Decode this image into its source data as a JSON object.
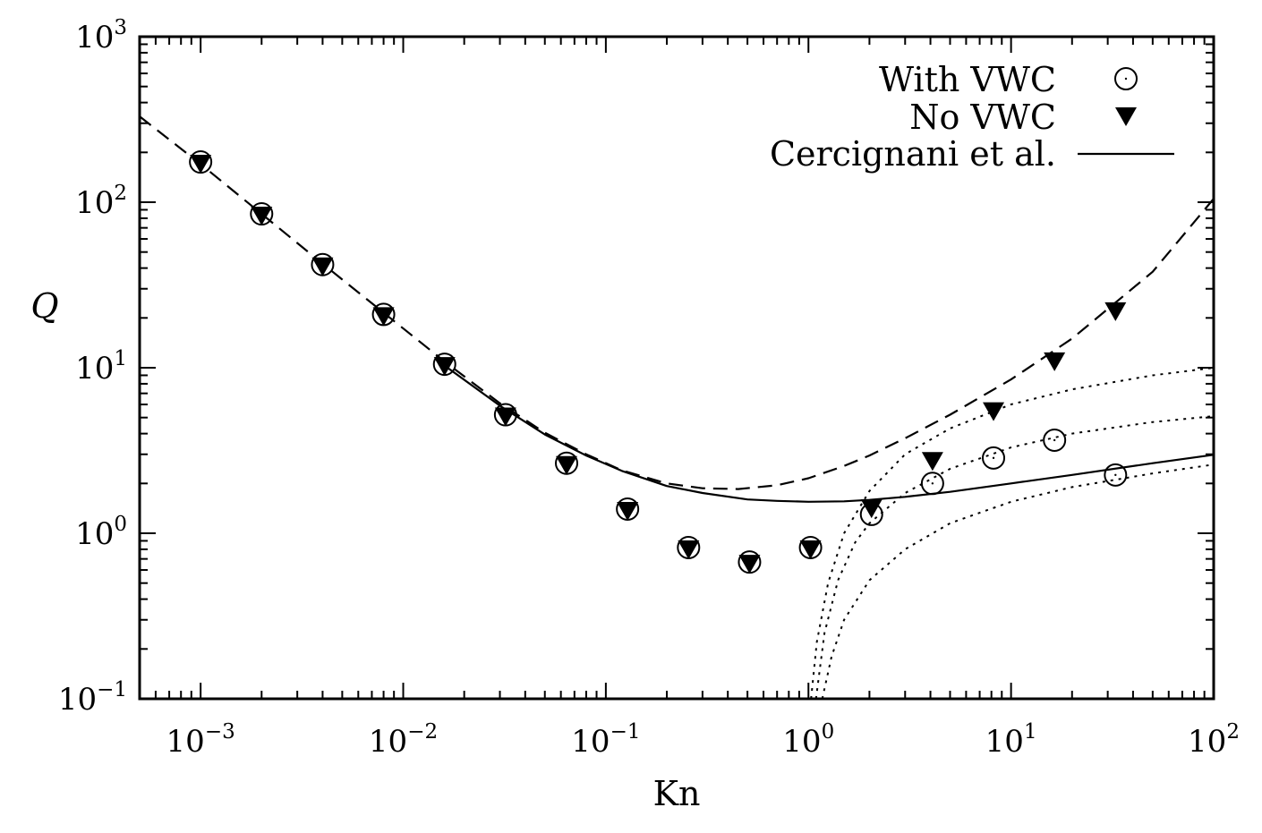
{
  "chart_data": {
    "type": "scatter",
    "xlabel": "Kn",
    "ylabel": "Q",
    "x_scale": "log",
    "y_scale": "log",
    "xlim": [
      0.0005,
      100
    ],
    "ylim": [
      0.1,
      1000
    ],
    "grid": false,
    "legend_position": "top-right",
    "x_ticks": [
      {
        "value": 0.001,
        "base": "10",
        "exp": "−3"
      },
      {
        "value": 0.01,
        "base": "10",
        "exp": "−2"
      },
      {
        "value": 0.1,
        "base": "10",
        "exp": "−1"
      },
      {
        "value": 1,
        "base": "10",
        "exp": "0"
      },
      {
        "value": 10,
        "base": "10",
        "exp": "1"
      },
      {
        "value": 100,
        "base": "10",
        "exp": "2"
      }
    ],
    "y_ticks": [
      {
        "value": 0.1,
        "base": "10",
        "exp": "−1"
      },
      {
        "value": 1,
        "base": "10",
        "exp": "0"
      },
      {
        "value": 10,
        "base": "10",
        "exp": "1"
      },
      {
        "value": 100,
        "base": "10",
        "exp": "2"
      },
      {
        "value": 1000,
        "base": "10",
        "exp": "3"
      }
    ],
    "series": [
      {
        "name": "With VWC",
        "marker": "open-circle",
        "x": [
          0.001,
          0.002,
          0.004,
          0.008,
          0.016,
          0.032,
          0.064,
          0.128,
          0.256,
          0.512,
          1.024,
          2.048,
          4.096,
          8.192,
          16.384,
          32.768
        ],
        "y": [
          175,
          85,
          42,
          21,
          10.5,
          5.2,
          2.65,
          1.4,
          0.82,
          0.67,
          0.82,
          1.3,
          2.0,
          2.85,
          3.65,
          2.25
        ]
      },
      {
        "name": "No VWC",
        "marker": "filled-triangle-down",
        "x": [
          0.001,
          0.002,
          0.004,
          0.008,
          0.016,
          0.032,
          0.064,
          0.128,
          0.256,
          0.512,
          1.024,
          2.048,
          4.096,
          8.192,
          16.384,
          32.768
        ],
        "y": [
          175,
          85,
          42,
          21,
          10.5,
          5.2,
          2.65,
          1.4,
          0.82,
          0.67,
          0.82,
          1.45,
          2.8,
          5.6,
          11.2,
          22.5
        ]
      },
      {
        "name": "Cercignani et al.",
        "style": "solid",
        "x": [
          0.016,
          0.03,
          0.05,
          0.08,
          0.12,
          0.2,
          0.3,
          0.5,
          0.7,
          1.0,
          1.5,
          2.0,
          3.0,
          5.0,
          10,
          20,
          50,
          100
        ],
        "y": [
          10.3,
          5.9,
          3.95,
          2.95,
          2.38,
          1.93,
          1.75,
          1.6,
          1.57,
          1.55,
          1.56,
          1.59,
          1.66,
          1.78,
          2.0,
          2.25,
          2.65,
          2.98
        ]
      },
      {
        "style": "dashed",
        "x": [
          0.0005,
          0.001,
          0.002,
          0.004,
          0.008,
          0.016,
          0.03,
          0.05,
          0.08,
          0.12,
          0.2,
          0.3,
          0.45,
          0.7,
          1.0,
          1.5,
          2.0,
          3.0,
          5.0,
          10,
          20,
          50,
          100
        ],
        "y": [
          330,
          170,
          85,
          42.5,
          21.5,
          10.9,
          6.1,
          4.05,
          3.0,
          2.4,
          2.0,
          1.87,
          1.85,
          1.95,
          2.15,
          2.55,
          2.95,
          3.75,
          5.2,
          8.5,
          15,
          38,
          105
        ]
      },
      {
        "style": "dotted",
        "x": [
          1.03,
          1.1,
          1.25,
          1.5,
          2.0,
          3.0,
          5.0,
          10,
          20,
          50,
          100
        ],
        "y": [
          0.1,
          0.22,
          0.5,
          1.0,
          1.8,
          3.0,
          4.3,
          6.0,
          7.4,
          9.0,
          10.0
        ]
      },
      {
        "style": "dotted",
        "x": [
          1.09,
          1.2,
          1.4,
          1.7,
          2.0,
          3.0,
          5.0,
          10,
          20,
          50,
          100
        ],
        "y": [
          0.1,
          0.25,
          0.52,
          0.88,
          1.15,
          1.75,
          2.45,
          3.3,
          4.0,
          4.7,
          5.1
        ]
      },
      {
        "style": "dotted",
        "x": [
          1.17,
          1.3,
          1.5,
          2.0,
          3.0,
          5.0,
          10,
          20,
          50,
          100
        ],
        "y": [
          0.1,
          0.18,
          0.3,
          0.52,
          0.8,
          1.15,
          1.55,
          1.9,
          2.3,
          2.6
        ]
      }
    ]
  }
}
